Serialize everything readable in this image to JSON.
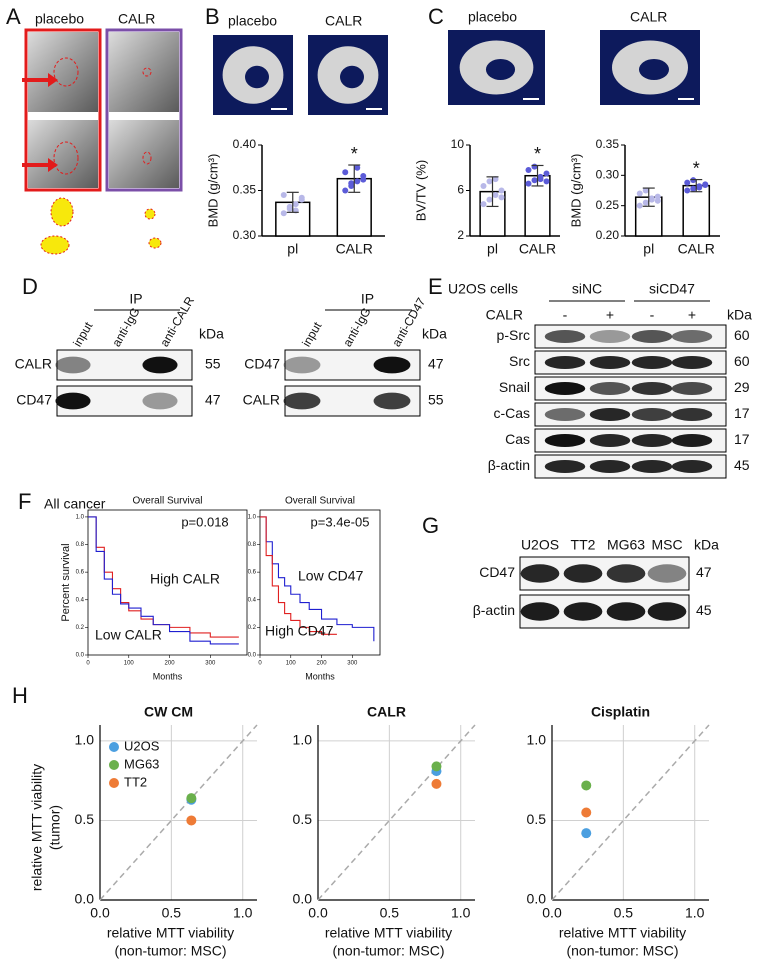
{
  "panel_labels": [
    "A",
    "B",
    "C",
    "D",
    "E",
    "F",
    "G",
    "H"
  ],
  "panel_a": {
    "columns": [
      "placebo",
      "CALR"
    ]
  },
  "panel_b": {
    "columns": [
      "placebo",
      "CALR"
    ]
  },
  "panel_c": {
    "columns": [
      "placebo",
      "CALR"
    ]
  },
  "panel_d": {
    "blots": [
      {
        "ip": "IP",
        "lanes": [
          "input",
          "anti-IgG",
          "anti-CALR"
        ],
        "kda_header": "kDa",
        "rows": [
          {
            "label": "CALR",
            "kda": 55
          },
          {
            "label": "CD47",
            "kda": 47
          }
        ]
      },
      {
        "ip": "IP",
        "lanes": [
          "input",
          "anti-IgG",
          "anti-CD47"
        ],
        "kda_header": "kDa",
        "rows": [
          {
            "label": "CD47",
            "kda": 47
          },
          {
            "label": "CALR",
            "kda": 55
          }
        ]
      }
    ]
  },
  "panel_e": {
    "cell_line": "U2OS cells",
    "groups": [
      "siNC",
      "siCD47"
    ],
    "treatment": {
      "label": "CALR",
      "lanes": [
        "-",
        "+",
        "-",
        "+"
      ]
    },
    "kda_header": "kDa",
    "rows": [
      {
        "label": "p-Src",
        "kda": 60
      },
      {
        "label": "Src",
        "kda": 60
      },
      {
        "label": "Snail",
        "kda": 29
      },
      {
        "label": "c-Cas",
        "kda": 17
      },
      {
        "label": "Cas",
        "kda": 17
      },
      {
        "label": "β-actin",
        "kda": 45
      }
    ]
  },
  "panel_f": {
    "title": "All cancer"
  },
  "panel_g": {
    "lanes": [
      "U2OS",
      "TT2",
      "MG63",
      "MSC"
    ],
    "kda_header": "kDa",
    "rows": [
      {
        "label": "CD47",
        "kda": 47
      },
      {
        "label": "β-actin",
        "kda": 45
      }
    ]
  },
  "chart_data": [
    {
      "type": "bar",
      "ylabel": "BMD (g/cm³)",
      "categories": [
        "pl",
        "CALR"
      ],
      "values": [
        0.337,
        0.363
      ],
      "errors": [
        0.011,
        0.015
      ],
      "points": [
        [
          0.325,
          0.33,
          0.335,
          0.34,
          0.345,
          0.332,
          0.328,
          0.342
        ],
        [
          0.35,
          0.355,
          0.36,
          0.366,
          0.37,
          0.358,
          0.375,
          0.362
        ]
      ],
      "point_colors": [
        "#b8b8e8",
        "#5c5cd8"
      ],
      "color": "#ffffff",
      "annotation": "*",
      "ylim": [
        0.3,
        0.4
      ],
      "yticks": [
        {
          "value": 0.3,
          "label": "0.30"
        },
        0.35,
        {
          "value": 0.4,
          "label": "0.40"
        }
      ]
    },
    {
      "type": "bar",
      "ylabel": "BV/TV (%)",
      "categories": [
        "pl",
        "CALR"
      ],
      "values": [
        5.9,
        7.3
      ],
      "errors": [
        1.3,
        0.9
      ],
      "points": [
        [
          4.8,
          5.2,
          5.6,
          6.0,
          6.4,
          6.8,
          7.0,
          5.4
        ],
        [
          6.6,
          6.9,
          7.2,
          7.5,
          7.8,
          8.1,
          7.0,
          6.8
        ]
      ],
      "point_colors": [
        "#b8b8e8",
        "#5c5cd8"
      ],
      "color": "#ffffff",
      "annotation": "*",
      "ylim": [
        2,
        10
      ],
      "yticks": [
        2,
        6,
        10
      ]
    },
    {
      "type": "bar",
      "ylabel": "BMD (g/cm³)",
      "categories": [
        "pl",
        "CALR"
      ],
      "values": [
        0.264,
        0.283
      ],
      "errors": [
        0.015,
        0.01
      ],
      "points": [
        [
          0.25,
          0.255,
          0.26,
          0.265,
          0.27,
          0.275,
          0.262,
          0.258
        ],
        [
          0.275,
          0.278,
          0.282,
          0.285,
          0.288,
          0.292,
          0.28,
          0.284
        ]
      ],
      "point_colors": [
        "#b8b8e8",
        "#5c5cd8"
      ],
      "color": "#ffffff",
      "annotation": "*",
      "ylim": [
        0.2,
        0.35
      ],
      "yticks": [
        {
          "value": 0.2,
          "label": "0.20"
        },
        0.25,
        {
          "value": 0.3,
          "label": "0.30"
        },
        0.35
      ]
    },
    {
      "type": "line",
      "title": "Overall Survival",
      "ylabel": "Percent survival",
      "xlabel": "Months",
      "annotation": "p=0.018",
      "x": [
        0,
        20,
        40,
        60,
        80,
        100,
        130,
        160,
        200,
        250,
        300,
        370
      ],
      "series": [
        {
          "name": "High CALR",
          "color": "#e02020",
          "values": [
            1.0,
            0.78,
            0.6,
            0.48,
            0.38,
            0.32,
            0.26,
            0.22,
            0.2,
            0.16,
            0.13,
            0.13
          ]
        },
        {
          "name": "Low CALR",
          "color": "#1f1fd0",
          "values": [
            1.0,
            0.75,
            0.55,
            0.44,
            0.37,
            0.34,
            0.28,
            0.22,
            0.17,
            0.1,
            0.08,
            0.08
          ]
        }
      ],
      "xlim": [
        0,
        390
      ],
      "xticks": [
        0,
        100,
        200,
        300
      ],
      "ylim": [
        0,
        1.05
      ],
      "yticks": [
        {
          "value": 0,
          "label": "0.0"
        },
        0.2,
        0.4,
        0.6,
        0.8,
        {
          "value": 1,
          "label": "1.0"
        }
      ]
    },
    {
      "type": "line",
      "title": "Overall Survival",
      "xlabel": "Months",
      "annotation": "p=3.4e-05",
      "x": [
        0,
        20,
        40,
        60,
        80,
        100,
        130,
        160,
        200,
        250,
        300,
        370
      ],
      "series": [
        {
          "name": "Low CD47",
          "color": "#1f1fd0",
          "values": [
            1.0,
            0.82,
            0.66,
            0.56,
            0.5,
            0.44,
            0.38,
            0.33,
            0.26,
            0.22,
            0.2,
            0.1
          ]
        },
        {
          "name": "High CD47",
          "color": "#e02020",
          "values": [
            1.0,
            0.72,
            0.5,
            0.38,
            0.3,
            0.25,
            0.2,
            0.17,
            0.15,
            0.15,
            null,
            null
          ]
        }
      ],
      "xlim": [
        0,
        390
      ],
      "xticks": [
        0,
        100,
        200,
        300
      ],
      "ylim": [
        0,
        1.05
      ],
      "yticks": [
        {
          "value": 0,
          "label": "0.0"
        },
        0.2,
        0.4,
        0.6,
        0.8,
        {
          "value": 1,
          "label": "1.0"
        }
      ]
    },
    {
      "type": "scatter",
      "title": "CW CM",
      "xlabel": [
        "relative MTT viability",
        "(non-tumor: MSC)"
      ],
      "ylabel": [
        "relative MTT viability",
        "(tumor)"
      ],
      "legend": "upper left",
      "grid": true,
      "series": [
        {
          "name": "U2OS",
          "color": "#4b9fe0",
          "x": [
            0.64
          ],
          "values": [
            0.63
          ]
        },
        {
          "name": "MG63",
          "color": "#6ab04c",
          "x": [
            0.64
          ],
          "values": [
            0.64
          ]
        },
        {
          "name": "TT2",
          "color": "#ee7b36",
          "x": [
            0.64
          ],
          "values": [
            0.5
          ]
        }
      ],
      "xlim": [
        0,
        1.1
      ],
      "xticks": [
        {
          "value": 0,
          "label": "0.0"
        },
        0.5,
        {
          "value": 1,
          "label": "1.0"
        }
      ],
      "ylim": [
        0,
        1.1
      ],
      "yticks": [
        {
          "value": 0,
          "label": "0.0"
        },
        0.5,
        {
          "value": 1,
          "label": "1.0"
        }
      ]
    },
    {
      "type": "scatter",
      "title": "CALR",
      "xlabel": [
        "relative MTT viability",
        "(non-tumor: MSC)"
      ],
      "grid": true,
      "series": [
        {
          "color": "#4b9fe0",
          "x": [
            0.83
          ],
          "values": [
            0.81
          ]
        },
        {
          "color": "#6ab04c",
          "x": [
            0.83
          ],
          "values": [
            0.84
          ]
        },
        {
          "color": "#ee7b36",
          "x": [
            0.83
          ],
          "values": [
            0.73
          ]
        }
      ],
      "xlim": [
        0,
        1.1
      ],
      "xticks": [
        {
          "value": 0,
          "label": "0.0"
        },
        0.5,
        {
          "value": 1,
          "label": "1.0"
        }
      ],
      "ylim": [
        0,
        1.1
      ],
      "yticks": [
        {
          "value": 0,
          "label": "0.0"
        },
        0.5,
        {
          "value": 1,
          "label": "1.0"
        }
      ]
    },
    {
      "type": "scatter",
      "title": "Cisplatin",
      "xlabel": [
        "relative MTT viability",
        "(non-tumor: MSC)"
      ],
      "grid": true,
      "series": [
        {
          "color": "#4b9fe0",
          "x": [
            0.24
          ],
          "values": [
            0.42
          ]
        },
        {
          "color": "#6ab04c",
          "x": [
            0.24
          ],
          "values": [
            0.72
          ]
        },
        {
          "color": "#ee7b36",
          "x": [
            0.24
          ],
          "values": [
            0.55
          ]
        }
      ],
      "xlim": [
        0,
        1.1
      ],
      "xticks": [
        {
          "value": 0,
          "label": "0.0"
        },
        0.5,
        {
          "value": 1,
          "label": "1.0"
        }
      ],
      "ylim": [
        0,
        1.1
      ],
      "yticks": [
        {
          "value": 0,
          "label": "0.0"
        },
        0.5,
        {
          "value": 1,
          "label": "1.0"
        }
      ]
    }
  ]
}
